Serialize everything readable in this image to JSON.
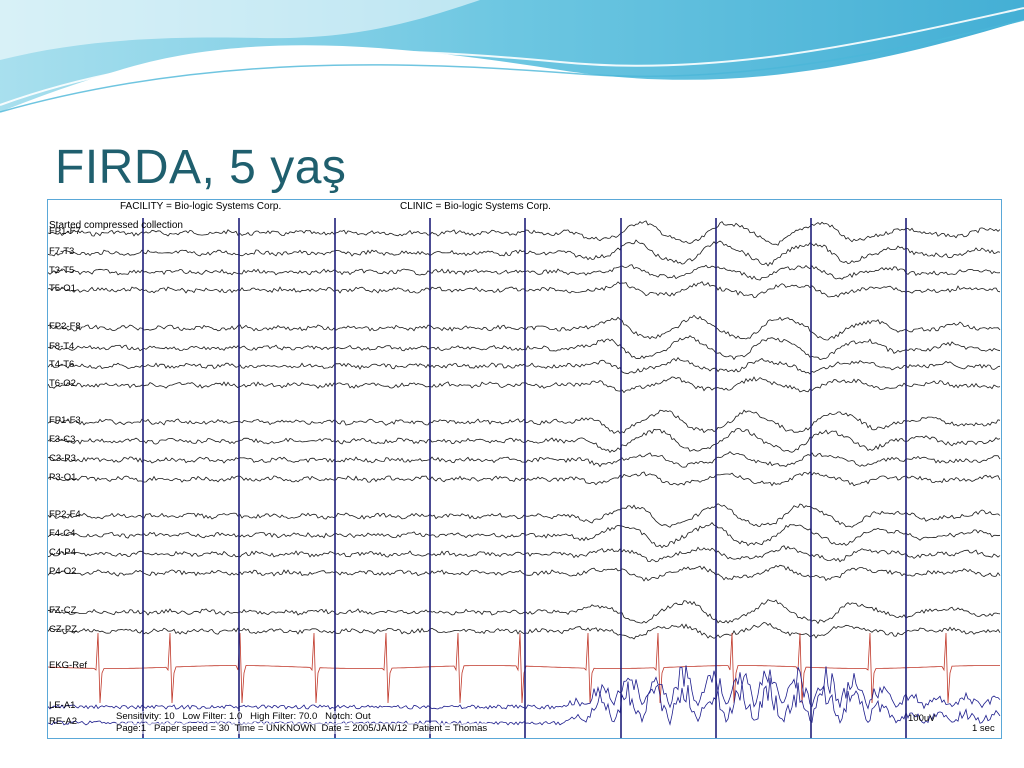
{
  "slide": {
    "title": "FIRDA, 5 yaş",
    "accent_color": "#1f5f6e",
    "wave_colors": [
      "#7fd3e8",
      "#43b2d8",
      "#bde9f3"
    ]
  },
  "eeg": {
    "header": {
      "facility": "FACILITY = Bio-logic Systems Corp.",
      "clinic": "CLINIC = Bio-logic Systems Corp.",
      "status": "Started compressed collection"
    },
    "channels": [
      "FP1-F7",
      "F7-T3",
      "T3-T5",
      "T5-O1",
      "FP2-F8",
      "F8-T4",
      "T4-T6",
      "T6-O2",
      "FP1-F3",
      "F3-C3",
      "C3-P3",
      "P3-O1",
      "FP2-F4",
      "F4-C4",
      "C4-P4",
      "P4-O2",
      "FZ-CZ",
      "CZ-PZ",
      "EKG-Ref",
      "LE-A1",
      "RE-A2"
    ],
    "footer": {
      "sensitivity_label": "Sensitivity:",
      "sensitivity": "10",
      "low_filter_label": "Low Filter:",
      "low_filter": "1.0",
      "high_filter_label": "High Filter:",
      "high_filter": "70.0",
      "notch_label": "Notch:",
      "notch": "Out",
      "page_label": "Page:",
      "page": "1",
      "paper_speed_label": "Paper speed =",
      "paper_speed": "30",
      "time_label": "Time =",
      "time": "UNKNOWN",
      "date_label": "Date =",
      "date": "2005/JAN/12",
      "patient_label": "Patient =",
      "patient": "Thomas"
    },
    "scale": {
      "amplitude": "100uV",
      "time": "1 sec"
    },
    "trace_colors": {
      "eeg": "#1a1a1a",
      "ekg": "#c0392b",
      "eye": "#1c1c8c",
      "marker": "#1f1f7a"
    }
  }
}
